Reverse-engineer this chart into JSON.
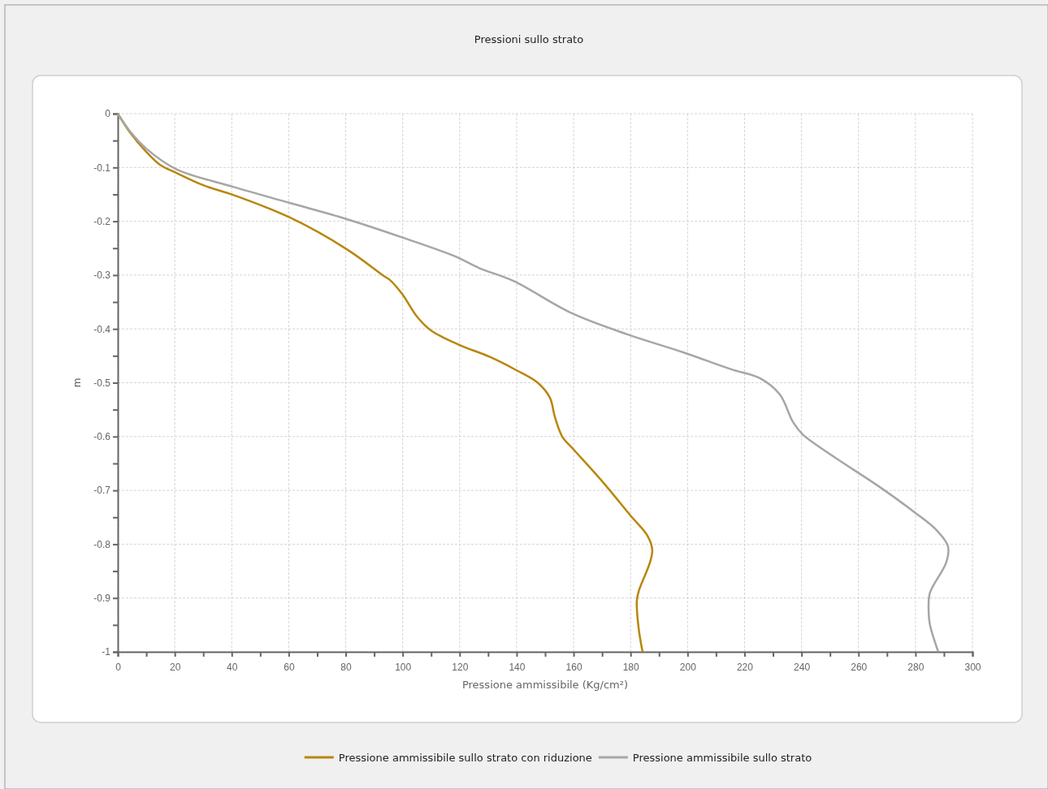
{
  "chart_data": {
    "type": "line",
    "title": "Pressioni sullo strato",
    "xlabel": "Pressione ammissibile (Kg/cm²)",
    "ylabel": "m",
    "xlim": [
      0,
      300
    ],
    "ylim": [
      -1,
      0
    ],
    "xticks": [
      0,
      {
        "value": 10,
        "label": null
      },
      20,
      {
        "value": 30,
        "label": null
      },
      40,
      {
        "value": 50,
        "label": null
      },
      60,
      {
        "value": 70,
        "label": null
      },
      80,
      {
        "value": 90,
        "label": null
      },
      100,
      {
        "value": 110,
        "label": null
      },
      120,
      {
        "value": 130,
        "label": null
      },
      140,
      {
        "value": 150,
        "label": null
      },
      160,
      {
        "value": 170,
        "label": null
      },
      180,
      {
        "value": 190,
        "label": null
      },
      200,
      {
        "value": 210,
        "label": null
      },
      220,
      {
        "value": 230,
        "label": null
      },
      240,
      {
        "value": 250,
        "label": null
      },
      260,
      {
        "value": 270,
        "label": null
      },
      280,
      {
        "value": 290,
        "label": null
      },
      300
    ],
    "yticks": [
      -1,
      {
        "value": -0.95,
        "label": null
      },
      -0.9,
      {
        "value": -0.85,
        "label": null
      },
      -0.8,
      {
        "value": -0.75,
        "label": null
      },
      -0.7,
      {
        "value": -0.65,
        "label": null
      },
      -0.6,
      {
        "value": -0.55,
        "label": null
      },
      -0.5,
      {
        "value": -0.45,
        "label": null
      },
      -0.4,
      {
        "value": -0.35,
        "label": null
      },
      -0.3,
      {
        "value": -0.25,
        "label": null
      },
      -0.2,
      {
        "value": -0.15,
        "label": null
      },
      -0.1,
      {
        "value": -0.05,
        "label": null
      },
      0
    ],
    "grid": true,
    "legend": "bottom",
    "line_style": "solid",
    "marker": "none",
    "series": [
      {
        "name": "Pressione ammissibile sullo strato con riduzione",
        "color": "#b8860b",
        "x": [
          0,
          4.3,
          10,
          14.8,
          20.5,
          30,
          40.5,
          60.4,
          80.4,
          93.5,
          95.5,
          99.8,
          105,
          110,
          120,
          130.6,
          140,
          147.4,
          151.7,
          153.4,
          156,
          160,
          170.5,
          180,
          185.9,
          187.6,
          186.8,
          183,
          182.2,
          182.8,
          184.2
        ],
        "values": [
          0,
          -0.035,
          -0.071,
          -0.095,
          -0.11,
          -0.133,
          -0.151,
          -0.193,
          -0.252,
          -0.302,
          -0.309,
          -0.335,
          -0.377,
          -0.403,
          -0.43,
          -0.452,
          -0.477,
          -0.5,
          -0.528,
          -0.563,
          -0.6,
          -0.624,
          -0.686,
          -0.747,
          -0.784,
          -0.81,
          -0.834,
          -0.885,
          -0.905,
          -0.955,
          -1.0
        ]
      },
      {
        "name": "Pressione ammissibile sullo strato",
        "color": "#a6a6a6",
        "x": [
          0,
          4.3,
          10,
          20.5,
          40.5,
          60.4,
          80.4,
          100.4,
          118.3,
          126.9,
          138.9,
          159.4,
          178.8,
          198.2,
          215.3,
          225.5,
          232.4,
          237,
          240.4,
          251.5,
          267.5,
          280,
          287.4,
          291.4,
          290.8,
          285.1,
          284.6,
          285.1,
          288
        ],
        "values": [
          0,
          -0.033,
          -0.065,
          -0.103,
          -0.136,
          -0.166,
          -0.196,
          -0.231,
          -0.265,
          -0.287,
          -0.311,
          -0.371,
          -0.41,
          -0.443,
          -0.475,
          -0.492,
          -0.522,
          -0.573,
          -0.596,
          -0.638,
          -0.694,
          -0.742,
          -0.774,
          -0.804,
          -0.834,
          -0.89,
          -0.92,
          -0.95,
          -1.0
        ]
      }
    ]
  }
}
